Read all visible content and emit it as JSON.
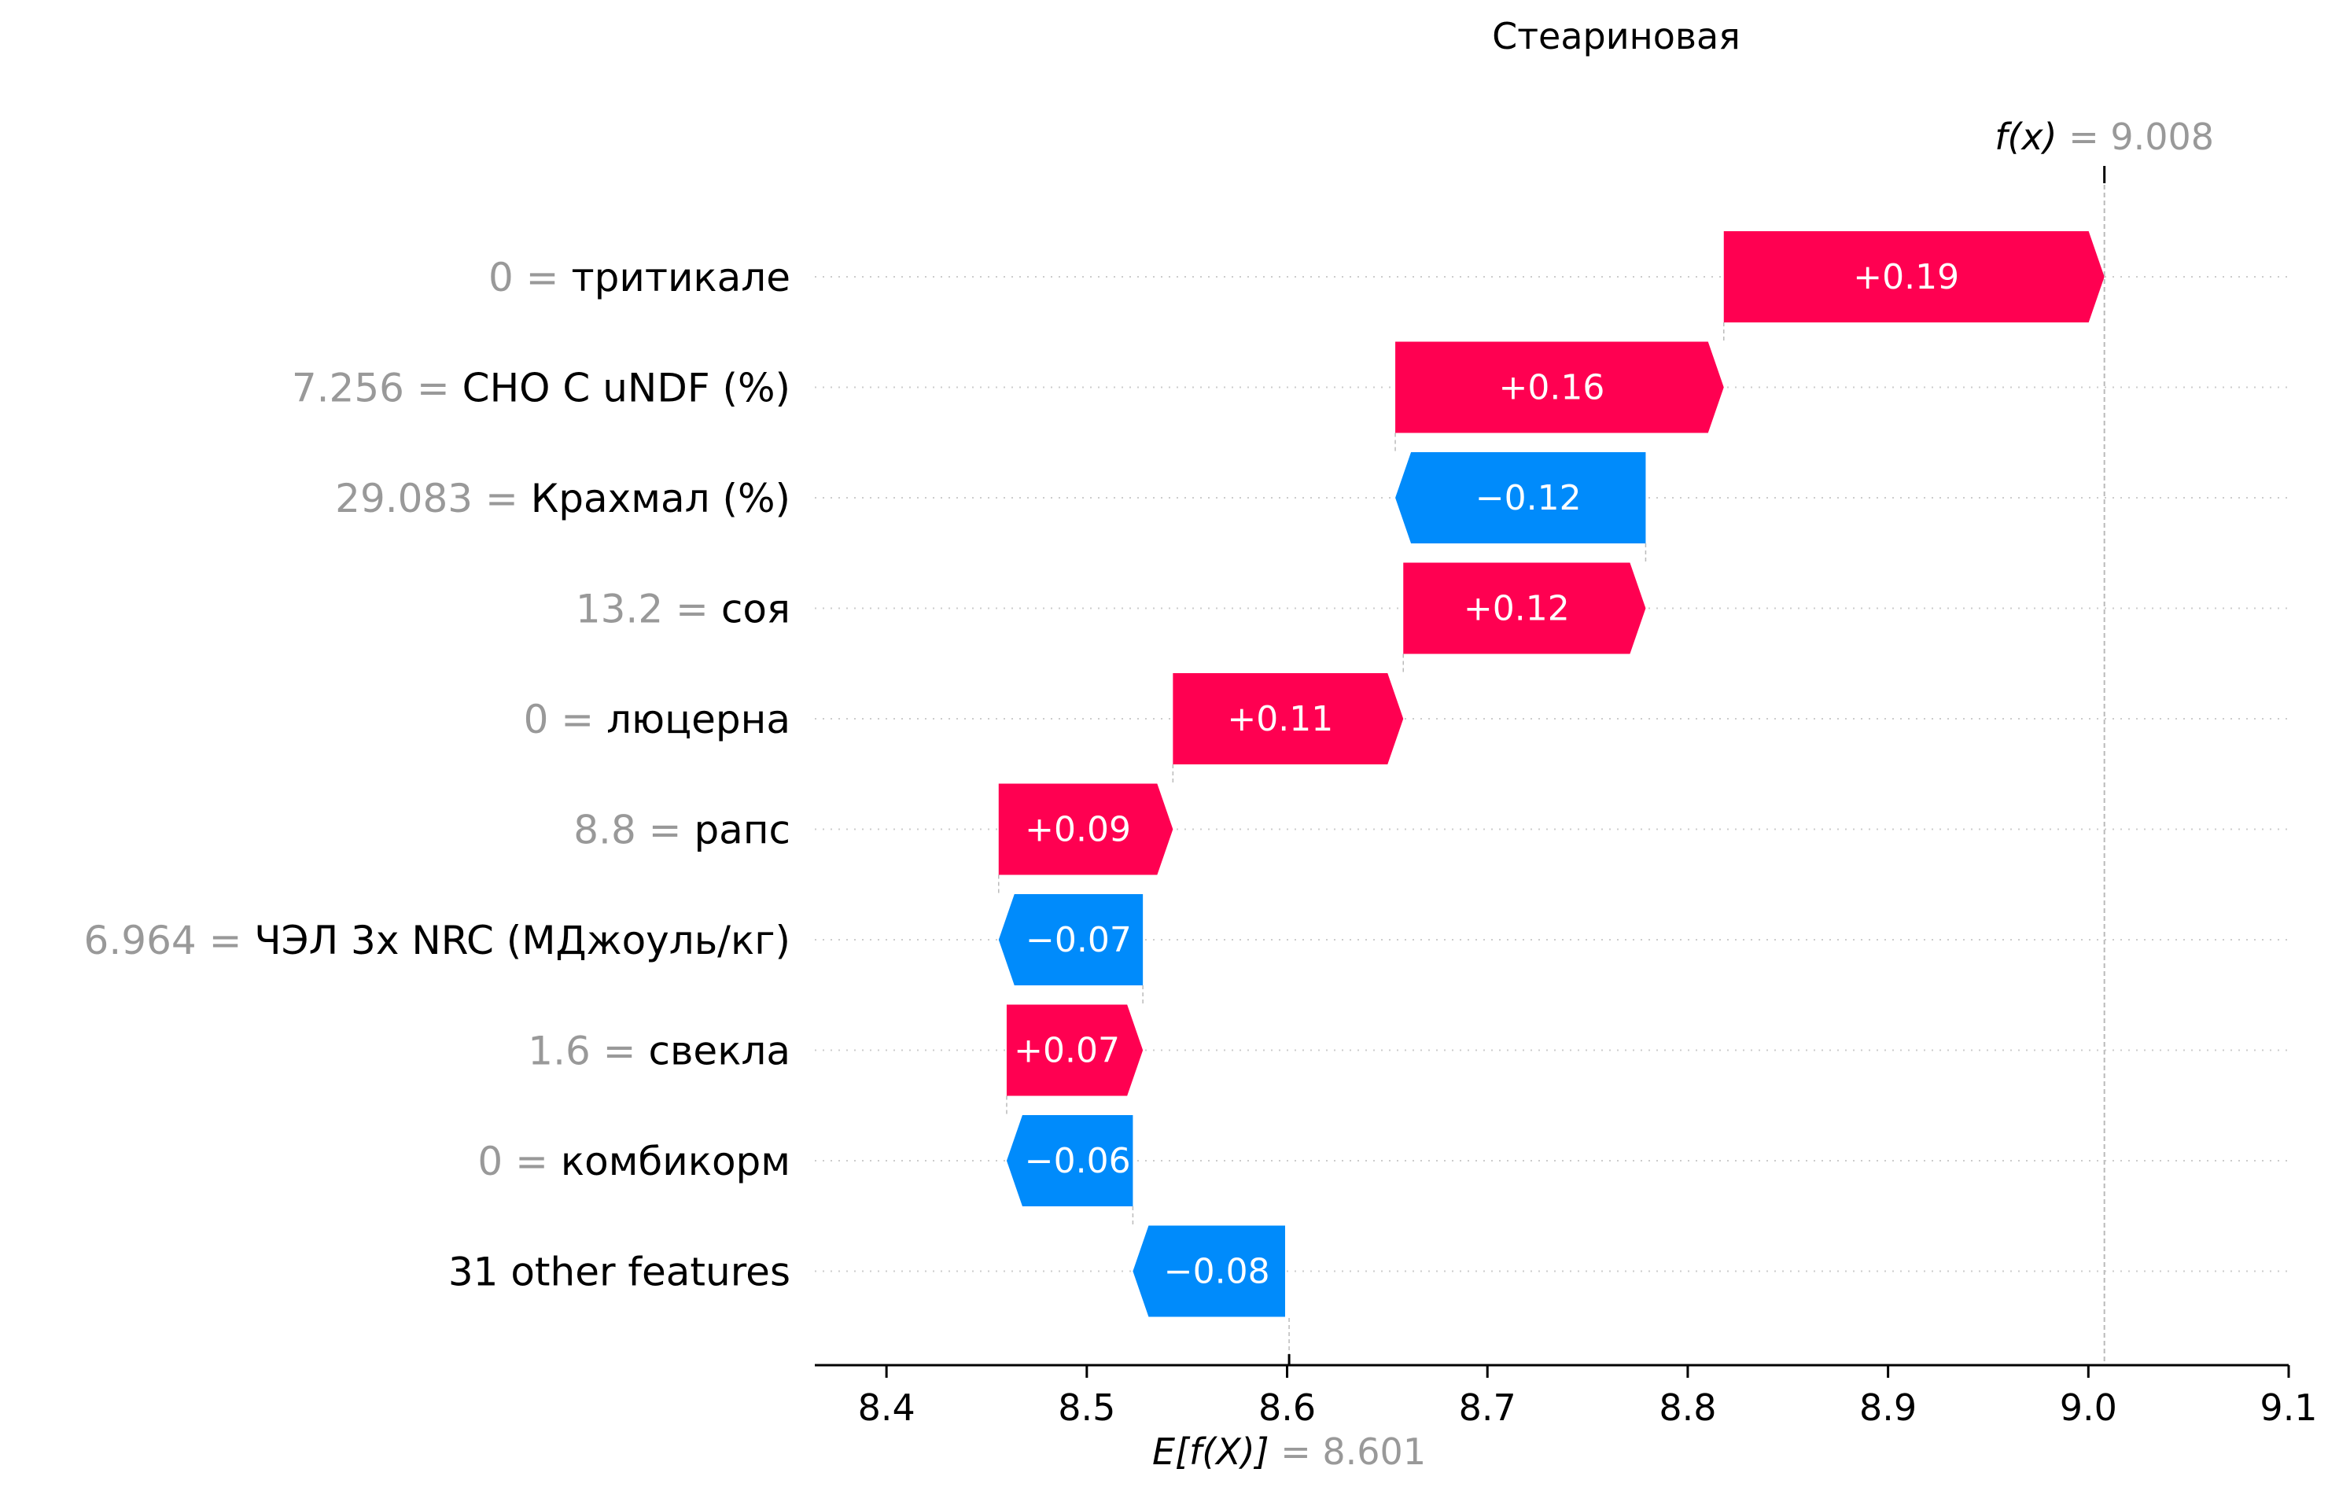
{
  "chart_data": {
    "type": "waterfall",
    "title": "Стеариновая",
    "base_value": 8.601,
    "base_label_prefix": "E[f(X)]",
    "base_value_text": "= 8.601",
    "output_value": 9.008,
    "output_label_prefix": "f(x)",
    "output_value_text": "= 9.008",
    "xlim": [
      8.365,
      9.1
    ],
    "xticks": [
      8.4,
      8.5,
      8.6,
      8.7,
      8.8,
      8.9,
      9.0,
      9.1
    ],
    "xtick_labels": [
      "8.4",
      "8.5",
      "8.6",
      "8.7",
      "8.8",
      "8.9",
      "9.0",
      "9.1"
    ],
    "features": [
      {
        "value_text": "0",
        "eq": "=",
        "name": "тритикале",
        "contribution": 0.19,
        "label": "+0.19"
      },
      {
        "value_text": "7.256",
        "eq": "=",
        "name": "CHO C uNDF (%)",
        "contribution": 0.164,
        "label": "+0.16"
      },
      {
        "value_text": "29.083",
        "eq": "=",
        "name": "Крахмал (%)",
        "contribution": -0.125,
        "label": "−0.12"
      },
      {
        "value_text": "13.2",
        "eq": "=",
        "name": "соя",
        "contribution": 0.121,
        "label": "+0.12"
      },
      {
        "value_text": "0",
        "eq": "=",
        "name": "люцерна",
        "contribution": 0.115,
        "label": "+0.11"
      },
      {
        "value_text": "8.8",
        "eq": "=",
        "name": "рапс",
        "contribution": 0.087,
        "label": "+0.09"
      },
      {
        "value_text": "6.964",
        "eq": "=",
        "name": "ЧЭЛ 3х NRC (МДжоуль/кг)",
        "contribution": -0.072,
        "label": "−0.07"
      },
      {
        "value_text": "1.6",
        "eq": "=",
        "name": "свекла",
        "contribution": 0.068,
        "label": "+0.07"
      },
      {
        "value_text": "0",
        "eq": "=",
        "name": "комбикорм",
        "contribution": -0.063,
        "label": "−0.06"
      },
      {
        "value_text": "",
        "eq": "",
        "name": "31 other features",
        "contribution": -0.076,
        "label": "−0.08"
      }
    ],
    "colors": {
      "positive": "#ff0051",
      "negative": "#008bfb",
      "bar_text": "#ffffff",
      "value_text": "#999999",
      "name_text": "#000000",
      "grid": "#cccccc",
      "axis": "#000000"
    }
  }
}
